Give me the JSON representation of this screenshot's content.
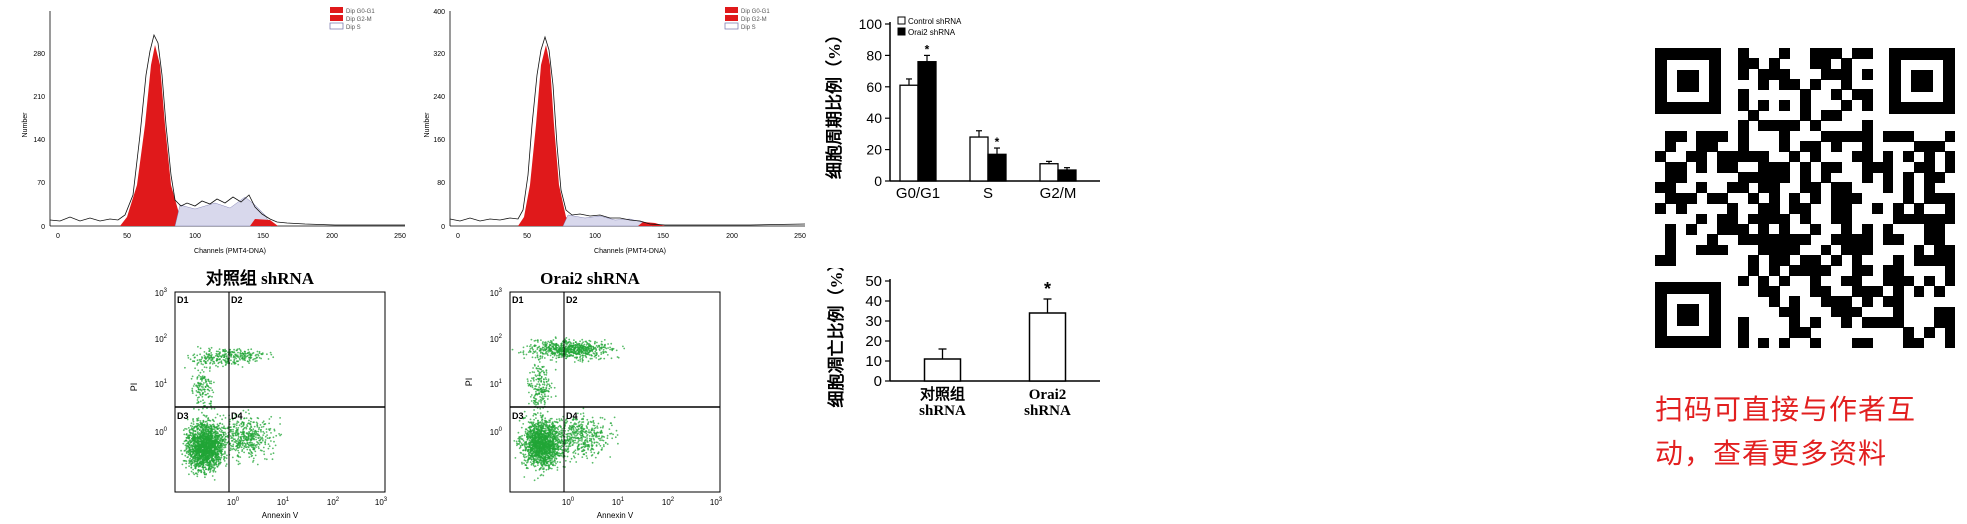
{
  "histograms": [
    {
      "ylabel": "Number",
      "xlabel": "Channels (PMT4-DNA)",
      "yticks": [
        "0",
        "70",
        "140",
        "210",
        "280"
      ],
      "xticks": [
        "0",
        "50",
        "100",
        "150",
        "200",
        "250"
      ],
      "legend": [
        "Dip G0-G1",
        "Dip G2-M",
        "Dip S"
      ]
    },
    {
      "ylabel": "Number",
      "xlabel": "Channels (PMT4-DNA)",
      "yticks": [
        "0",
        "80",
        "160",
        "240",
        "320",
        "400"
      ],
      "xticks": [
        "0",
        "50",
        "100",
        "150",
        "200",
        "250"
      ],
      "legend": [
        "Dip G0-G1",
        "Dip G2-M",
        "Dip S"
      ]
    }
  ],
  "scatters": [
    {
      "title": "对照组 shRNA",
      "ylabel": "PI",
      "xlabel": "Annexin V",
      "quadrants": [
        "D1",
        "D2",
        "D3",
        "D4"
      ]
    },
    {
      "title": "Orai2 shRNA",
      "ylabel": "PI",
      "xlabel": "Annexin V",
      "quadrants": [
        "D1",
        "D2",
        "D3",
        "D4"
      ]
    }
  ],
  "chart_data": [
    {
      "type": "bar",
      "ylabel": "细胞周期比例（%）",
      "categories": [
        "G0/G1",
        "S",
        "G2/M"
      ],
      "series": [
        {
          "name": "Control shRNA",
          "values": [
            61,
            28,
            11
          ],
          "errors": [
            4,
            4,
            1.5
          ],
          "color": "#ffffff"
        },
        {
          "name": "Orai2 shRNA",
          "values": [
            76,
            17,
            7
          ],
          "errors": [
            4,
            4,
            1.5
          ],
          "color": "#000000"
        }
      ],
      "ylim": [
        0,
        100
      ],
      "yticks": [
        "0",
        "20",
        "40",
        "60",
        "80",
        "100"
      ],
      "significance": [
        "*",
        "*",
        ""
      ]
    },
    {
      "type": "bar",
      "ylabel": "细胞凋亡比例（%）",
      "categories": [
        "对照组 shRNA",
        "Orai2 shRNA"
      ],
      "values": [
        11,
        34
      ],
      "errors": [
        5,
        7
      ],
      "ylim": [
        0,
        50
      ],
      "yticks": [
        "0",
        "10",
        "20",
        "30",
        "40",
        "50"
      ],
      "significance": [
        "",
        "*"
      ]
    }
  ],
  "cta": {
    "line1": "扫码可直接与作者互",
    "line2": "动，查看更多资料"
  },
  "colors": {
    "g0g1": "#e0191b",
    "sphase": "#6f6fa8",
    "dots": "#22a637",
    "cta": "#e21f1f"
  },
  "icons": [
    "qr-code-icon"
  ]
}
